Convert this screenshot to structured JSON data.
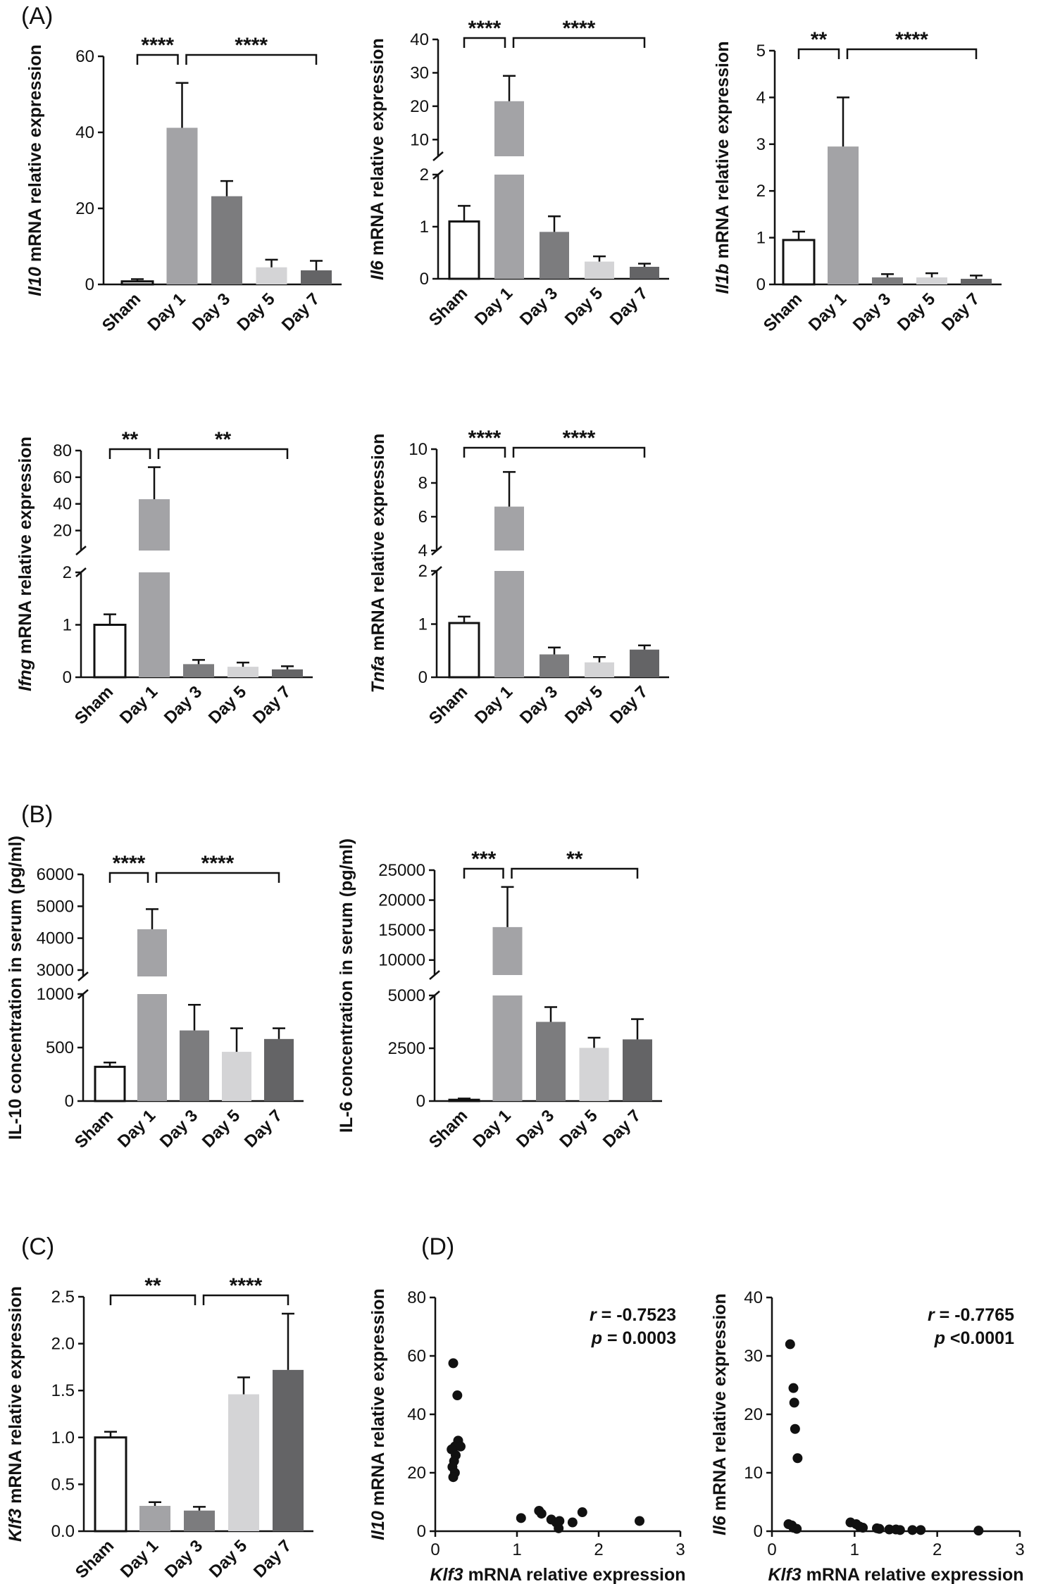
{
  "panel_labels": {
    "A": "(A)",
    "B": "(B)",
    "C": "(C)",
    "D": "(D)"
  },
  "colors": {
    "sham": "#ffffff",
    "day1": "#a3a3a6",
    "day3": "#7c7c7e",
    "day5": "#d4d4d6",
    "day7": "#646466",
    "axis": "#111111"
  },
  "chart_data": [
    {
      "id": "il10",
      "type": "bar",
      "panel": "A",
      "ylabel_gene": "Il10",
      "ylabel_rest": " mRNA relative expression",
      "categories": [
        "Sham",
        "Day 1",
        "Day 3",
        "Day 5",
        "Day 7"
      ],
      "values": [
        0.8,
        41.2,
        23.2,
        4.5,
        3.7
      ],
      "errors": [
        0.6,
        11.8,
        4.0,
        2.0,
        2.5
      ],
      "ylim": [
        0,
        60
      ],
      "yticks": [
        "0",
        "20",
        "40",
        "60"
      ],
      "brackets": [
        {
          "from": 0,
          "to": 1,
          "label": "****"
        },
        {
          "from": 1,
          "to": 4,
          "label": "****"
        }
      ]
    },
    {
      "id": "il6",
      "type": "bar",
      "panel": "A",
      "ylabel_gene": "Il6",
      "ylabel_rest": " mRNA relative expression",
      "categories": [
        "Sham",
        "Day 1",
        "Day 3",
        "Day 5",
        "Day 7"
      ],
      "values": [
        1.1,
        21.5,
        0.9,
        0.33,
        0.23
      ],
      "errors": [
        0.3,
        7.6,
        0.3,
        0.1,
        0.06
      ],
      "axis_break": true,
      "lower_range": [
        0,
        2
      ],
      "lower_ticks": [
        "0",
        "1",
        "2"
      ],
      "upper_range": [
        5,
        40
      ],
      "upper_ticks": [
        "10",
        "20",
        "30",
        "40"
      ],
      "brackets": [
        {
          "from": 0,
          "to": 1,
          "label": "****"
        },
        {
          "from": 1,
          "to": 4,
          "label": "****"
        }
      ]
    },
    {
      "id": "il1b",
      "type": "bar",
      "panel": "A",
      "ylabel_gene": "Il1b",
      "ylabel_rest": " mRNA relative expression",
      "categories": [
        "Sham",
        "Day 1",
        "Day 3",
        "Day 5",
        "Day 7"
      ],
      "values": [
        0.95,
        2.95,
        0.15,
        0.15,
        0.12
      ],
      "errors": [
        0.18,
        1.05,
        0.07,
        0.09,
        0.07
      ],
      "ylim": [
        0,
        5
      ],
      "yticks": [
        "0",
        "1",
        "2",
        "3",
        "4",
        "5"
      ],
      "brackets": [
        {
          "from": 0,
          "to": 1,
          "label": "**"
        },
        {
          "from": 1,
          "to": 4,
          "label": "****"
        }
      ]
    },
    {
      "id": "ifng",
      "type": "bar",
      "panel": "A",
      "ylabel_gene": "Ifng",
      "ylabel_rest": " mRNA relative expression",
      "categories": [
        "Sham",
        "Day 1",
        "Day 3",
        "Day 5",
        "Day 7"
      ],
      "values": [
        1.0,
        43.5,
        0.25,
        0.2,
        0.15
      ],
      "errors": [
        0.2,
        24.0,
        0.08,
        0.08,
        0.06
      ],
      "axis_break": true,
      "lower_range": [
        0,
        2
      ],
      "lower_ticks": [
        "0",
        "1",
        "2"
      ],
      "upper_range": [
        5,
        80
      ],
      "upper_ticks": [
        "20",
        "40",
        "60",
        "80"
      ],
      "brackets": [
        {
          "from": 0,
          "to": 1,
          "label": "**"
        },
        {
          "from": 1,
          "to": 4,
          "label": "**"
        }
      ]
    },
    {
      "id": "tnfa",
      "type": "bar",
      "panel": "A",
      "ylabel_gene": "Tnfa",
      "ylabel_rest": " mRNA relative expression",
      "categories": [
        "Sham",
        "Day 1",
        "Day 3",
        "Day 5",
        "Day 7"
      ],
      "values": [
        1.02,
        6.6,
        0.43,
        0.28,
        0.52
      ],
      "errors": [
        0.12,
        2.05,
        0.13,
        0.1,
        0.08
      ],
      "axis_break": true,
      "lower_range": [
        0,
        2
      ],
      "lower_ticks": [
        "0",
        "1",
        "2"
      ],
      "upper_range": [
        4,
        10
      ],
      "upper_ticks": [
        "4",
        "6",
        "8",
        "10"
      ],
      "brackets": [
        {
          "from": 0,
          "to": 1,
          "label": "****"
        },
        {
          "from": 1,
          "to": 4,
          "label": "****"
        }
      ]
    },
    {
      "id": "il10_serum",
      "type": "bar",
      "panel": "B",
      "ylabel_gene": "",
      "ylabel_rest": "IL-10 concentration in serum (pg/ml)",
      "categories": [
        "Sham",
        "Day 1",
        "Day 3",
        "Day 5",
        "Day 7"
      ],
      "values": [
        320,
        4280,
        660,
        460,
        580
      ],
      "errors": [
        40,
        630,
        240,
        220,
        100
      ],
      "axis_break": true,
      "lower_range": [
        0,
        1000
      ],
      "lower_ticks": [
        "0",
        "500",
        "1000"
      ],
      "upper_range": [
        2800,
        6000
      ],
      "upper_ticks": [
        "3000",
        "4000",
        "5000",
        "6000"
      ],
      "brackets": [
        {
          "from": 0,
          "to": 1,
          "label": "****"
        },
        {
          "from": 1,
          "to": 4,
          "label": "****"
        }
      ]
    },
    {
      "id": "il6_serum",
      "type": "bar",
      "panel": "B",
      "ylabel_gene": "",
      "ylabel_rest": "IL-6 concentration in serum (pg/ml)",
      "categories": [
        "Sham",
        "Day 1",
        "Day 3",
        "Day 5",
        "Day 7"
      ],
      "values": [
        60,
        15500,
        3750,
        2520,
        2920
      ],
      "errors": [
        60,
        6700,
        700,
        480,
        960
      ],
      "axis_break": true,
      "lower_range": [
        0,
        5000
      ],
      "lower_ticks": [
        "0",
        "2500",
        "5000"
      ],
      "upper_range": [
        7500,
        25000
      ],
      "upper_ticks": [
        "10000",
        "15000",
        "20000",
        "25000"
      ],
      "brackets": [
        {
          "from": 0,
          "to": 1,
          "label": "***"
        },
        {
          "from": 1,
          "to": 4,
          "label": "**"
        }
      ]
    },
    {
      "id": "klf3",
      "type": "bar",
      "panel": "C",
      "ylabel_gene": "Klf3",
      "ylabel_rest": " mRNA relative expression",
      "categories": [
        "Sham",
        "Day 1",
        "Day 3",
        "Day 5",
        "Day 7"
      ],
      "values": [
        1.0,
        0.27,
        0.22,
        1.46,
        1.72
      ],
      "errors": [
        0.06,
        0.04,
        0.04,
        0.18,
        0.6
      ],
      "ylim": [
        0,
        2.5
      ],
      "yticks": [
        "0.0",
        "0.5",
        "1.0",
        "1.5",
        "2.0",
        "2.5"
      ],
      "brackets": [
        {
          "from": 0,
          "to": 2,
          "label": "**"
        },
        {
          "from": 2,
          "to": 4,
          "label": "****"
        }
      ]
    },
    {
      "id": "corr_il10",
      "type": "scatter",
      "panel": "D",
      "xlabel_gene": "Klf3",
      "xlabel_rest": " mRNA relative expression",
      "ylabel_gene": "Il10",
      "ylabel_rest": " mRNA relative expression",
      "xlim": [
        0,
        3
      ],
      "xticks": [
        "0",
        "1",
        "2",
        "3"
      ],
      "ylim": [
        0,
        80
      ],
      "yticks": [
        "0",
        "20",
        "40",
        "60",
        "80"
      ],
      "r_label": "r",
      "r_value": " = -0.7523",
      "p_label": "p",
      "p_value": " = 0.0003",
      "points": [
        [
          0.22,
          57.5
        ],
        [
          0.27,
          46.5
        ],
        [
          0.28,
          31
        ],
        [
          0.24,
          29
        ],
        [
          0.31,
          29
        ],
        [
          0.2,
          28
        ],
        [
          0.25,
          26
        ],
        [
          0.23,
          24
        ],
        [
          0.21,
          22
        ],
        [
          0.24,
          20
        ],
        [
          0.22,
          18.5
        ],
        [
          1.05,
          4.5
        ],
        [
          1.27,
          7
        ],
        [
          1.3,
          6
        ],
        [
          1.42,
          4
        ],
        [
          1.48,
          3
        ],
        [
          1.51,
          1
        ],
        [
          1.52,
          3.5
        ],
        [
          1.68,
          3
        ],
        [
          1.8,
          6.5
        ],
        [
          2.5,
          3.5
        ]
      ]
    },
    {
      "id": "corr_il6",
      "type": "scatter",
      "panel": "D",
      "xlabel_gene": "Klf3",
      "xlabel_rest": " mRNA relative expression",
      "ylabel_gene": "Il6",
      "ylabel_rest": " mRNA relative expression",
      "xlim": [
        0,
        3
      ],
      "xticks": [
        "0",
        "1",
        "2",
        "3"
      ],
      "ylim": [
        0,
        40
      ],
      "yticks": [
        "0",
        "10",
        "20",
        "30",
        "40"
      ],
      "r_label": "r",
      "r_value": " = -0.7765",
      "p_label": "p",
      "p_value": " <0.0001",
      "points": [
        [
          0.22,
          32
        ],
        [
          0.26,
          24.5
        ],
        [
          0.27,
          22
        ],
        [
          0.28,
          17.5
        ],
        [
          0.31,
          12.5
        ],
        [
          0.2,
          1.2
        ],
        [
          0.24,
          1
        ],
        [
          0.26,
          0.6
        ],
        [
          0.3,
          0.4
        ],
        [
          0.95,
          1.5
        ],
        [
          1.02,
          1.2
        ],
        [
          1.06,
          0.8
        ],
        [
          1.1,
          0.6
        ],
        [
          1.27,
          0.5
        ],
        [
          1.3,
          0.4
        ],
        [
          1.42,
          0.3
        ],
        [
          1.5,
          0.3
        ],
        [
          1.55,
          0.2
        ],
        [
          1.7,
          0.2
        ],
        [
          1.8,
          0.2
        ],
        [
          2.5,
          0.1
        ]
      ]
    }
  ]
}
